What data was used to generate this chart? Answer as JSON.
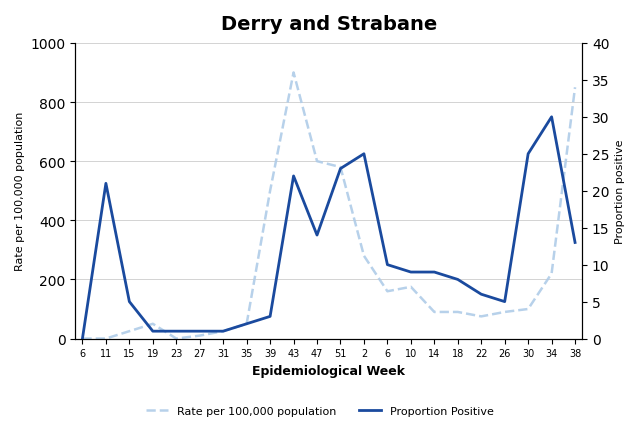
{
  "title": "Derry and Strabane",
  "xlabel": "Epidemiological Week",
  "ylabel_left": "Rate per 100,000 population",
  "ylabel_right": "Proportion positive",
  "x_labels": [
    "6",
    "11",
    "15",
    "19",
    "23",
    "27",
    "31",
    "35",
    "39",
    "43",
    "47",
    "51",
    "2",
    "6",
    "10",
    "14",
    "18",
    "22",
    "26",
    "30",
    "34",
    "38"
  ],
  "proportion_positive": [
    0,
    21,
    5,
    1,
    1,
    1,
    1,
    2,
    3,
    22,
    14,
    23,
    25,
    10,
    9,
    9,
    8,
    6,
    5,
    25,
    30,
    13
  ],
  "rate_per_100k": [
    0,
    0,
    25,
    50,
    0,
    10,
    25,
    50,
    500,
    900,
    600,
    580,
    280,
    160,
    175,
    90,
    90,
    75,
    90,
    100,
    220,
    850
  ],
  "ylim_left": [
    0,
    1000
  ],
  "ylim_right": [
    0,
    40
  ],
  "yticks_left": [
    0,
    200,
    400,
    600,
    800,
    1000
  ],
  "yticks_right": [
    0,
    5,
    10,
    15,
    20,
    25,
    30,
    35,
    40
  ],
  "line_color_proportion": "#1a4a9e",
  "line_color_rate": "#b0cce8",
  "background_color": "#ffffff",
  "legend_label_rate": "Rate per 100,000 population",
  "legend_label_proportion": "Proportion Positive"
}
